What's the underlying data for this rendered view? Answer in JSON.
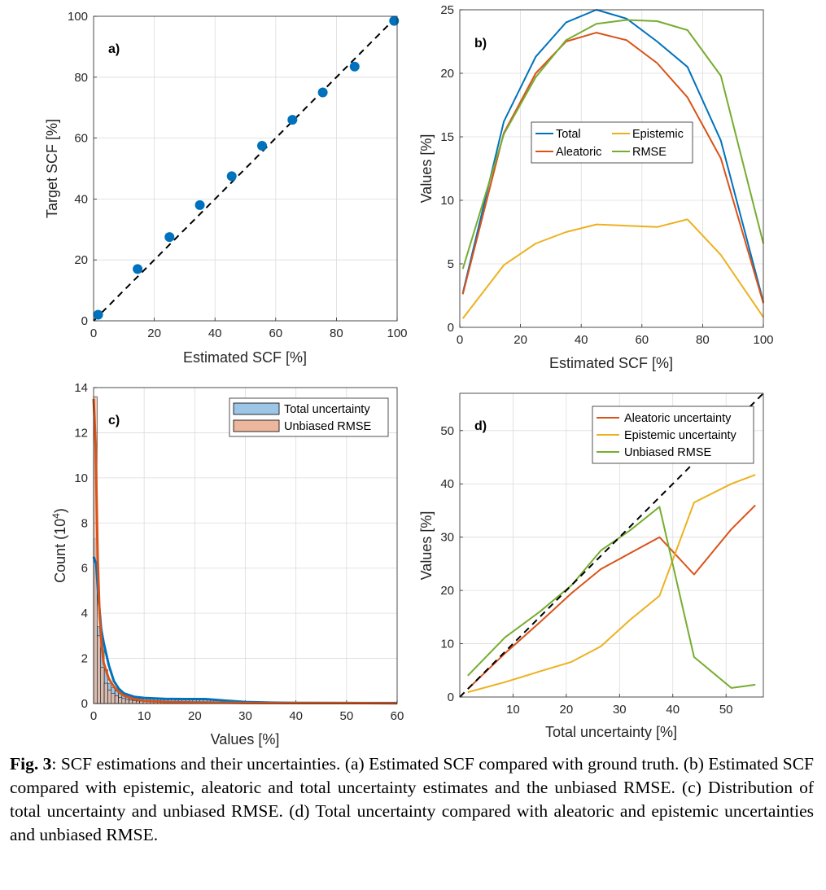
{
  "caption": {
    "label": "Fig. 3",
    "text": ": SCF estimations and their uncertainties. (a) Estimated SCF compared with ground truth. (b) Estimated SCF compared with epistemic, aleatoric and total uncertainty estimates and the unbiased RMSE. (c) Distribution of total uncertainty and unbiased RMSE. (d) Total uncertainty compared with aleatoric and epistemic uncertainties and unbiased RMSE."
  },
  "colors": {
    "blue": "#0072BD",
    "orange": "#D95319",
    "yellow": "#EDB120",
    "green": "#77AC30",
    "hist_blue": "#9CC5E6",
    "hist_orange": "#ECB79E"
  },
  "chart_data": [
    {
      "id": "a",
      "type": "scatter",
      "panel_label": "a)",
      "xlabel": "Estimated SCF [%]",
      "ylabel": "Target SCF [%]",
      "xlim": [
        0,
        100
      ],
      "ylim": [
        0,
        100
      ],
      "xticks": [
        0,
        20,
        40,
        60,
        80,
        100
      ],
      "yticks": [
        0,
        20,
        40,
        60,
        80,
        100
      ],
      "grid": true,
      "points": {
        "x": [
          1.5,
          14.5,
          25,
          35,
          45.5,
          55.5,
          65.5,
          75.5,
          86,
          99
        ],
        "y": [
          2,
          17,
          27.5,
          38,
          47.5,
          57.5,
          66,
          75,
          83.5,
          98.5
        ]
      },
      "reference_line": {
        "style": "dashed",
        "from": [
          0,
          0
        ],
        "to": [
          100,
          100
        ]
      }
    },
    {
      "id": "b",
      "type": "line",
      "panel_label": "b)",
      "xlabel": "Estimated SCF [%]",
      "ylabel": "Values [%]",
      "xlim": [
        0,
        100
      ],
      "ylim": [
        0,
        25
      ],
      "xticks": [
        0,
        20,
        40,
        60,
        80,
        100
      ],
      "yticks": [
        0,
        5,
        10,
        15,
        20,
        25
      ],
      "grid": true,
      "legend": "center-right",
      "x": [
        1,
        14.5,
        25,
        35,
        45,
        55,
        65,
        75,
        86,
        100
      ],
      "series": [
        {
          "name": "Total",
          "color": "blue",
          "values": [
            2.7,
            16.2,
            21.3,
            24.0,
            25.0,
            24.3,
            22.5,
            20.5,
            14.7,
            2.0
          ]
        },
        {
          "name": "Aleatoric",
          "color": "orange",
          "values": [
            2.6,
            15.3,
            20.0,
            22.5,
            23.2,
            22.6,
            20.8,
            18.1,
            13.3,
            1.9
          ]
        },
        {
          "name": "Epistemic",
          "color": "yellow",
          "values": [
            0.7,
            4.9,
            6.6,
            7.5,
            8.1,
            8.0,
            7.9,
            8.5,
            5.7,
            0.8
          ]
        },
        {
          "name": "RMSE",
          "color": "green",
          "values": [
            4.6,
            15.2,
            19.7,
            22.6,
            23.9,
            24.2,
            24.1,
            23.4,
            19.8,
            6.6
          ]
        }
      ]
    },
    {
      "id": "c",
      "type": "bar",
      "panel_label": "c)",
      "xlabel": "Values [%]",
      "ylabel_main": "Count (10",
      "ylabel_sup": "4",
      "ylabel_end": ")",
      "xlim": [
        0,
        60
      ],
      "ylim": [
        0,
        14
      ],
      "xticks": [
        0,
        10,
        20,
        30,
        40,
        50,
        60
      ],
      "yticks": [
        0,
        2,
        4,
        6,
        8,
        10,
        12,
        14
      ],
      "grid": true,
      "legend": "top-right",
      "bin_width": 0.7,
      "series": [
        {
          "name": "Total uncertainty",
          "color": "hist_blue",
          "values": [
            7.3,
            3.4,
            2.6,
            1.5,
            0.9,
            0.7,
            0.55,
            0.45,
            0.4,
            0.35,
            0.3,
            0.3,
            0.27,
            0.25,
            0.23,
            0.22,
            0.21,
            0.2,
            0.2,
            0.2,
            0.2,
            0.2,
            0.19,
            0.19,
            0.19,
            0.19,
            0.19,
            0.18,
            0.18,
            0.18,
            0.18,
            0.18,
            0.17,
            0.16,
            0.15
          ]
        },
        {
          "name": "Unbiased RMSE",
          "color": "hist_orange",
          "values": [
            13.6,
            3.0,
            1.6,
            0.9,
            0.6,
            0.45,
            0.35,
            0.28,
            0.22,
            0.18,
            0.15,
            0.13,
            0.11,
            0.1,
            0.09,
            0.08,
            0.08,
            0.07,
            0.07,
            0.06,
            0.06,
            0.06,
            0.05,
            0.05,
            0.05,
            0.05,
            0.04,
            0.04,
            0.04,
            0.04,
            0.04,
            0.03,
            0.03,
            0.03,
            0.03
          ]
        }
      ],
      "density_curves": [
        {
          "color": "blue",
          "x": [
            0,
            0.5,
            1,
            1.5,
            2,
            3,
            4,
            5,
            6,
            8,
            10,
            14,
            18,
            22,
            26,
            30,
            35,
            40,
            50,
            60
          ],
          "y": [
            6.5,
            6.2,
            4.6,
            3.3,
            2.7,
            1.7,
            1.0,
            0.65,
            0.45,
            0.3,
            0.25,
            0.21,
            0.2,
            0.2,
            0.13,
            0.07,
            0.04,
            0.03,
            0.02,
            0.02
          ]
        },
        {
          "color": "orange",
          "x": [
            0,
            0.4,
            0.8,
            1.2,
            1.6,
            2,
            3,
            4,
            5,
            6,
            8,
            10,
            15,
            20,
            30,
            40,
            50,
            60
          ],
          "y": [
            13.5,
            11.5,
            6.5,
            3.8,
            2.6,
            1.8,
            1.1,
            0.75,
            0.5,
            0.35,
            0.2,
            0.12,
            0.07,
            0.05,
            0.03,
            0.02,
            0.02,
            0.01
          ]
        }
      ]
    },
    {
      "id": "d",
      "type": "line",
      "panel_label": "d)",
      "xlabel": "Total uncertainty [%]",
      "ylabel": "Values [%]",
      "xlim": [
        0,
        57
      ],
      "ylim": [
        0,
        57
      ],
      "xticks": [
        10,
        20,
        30,
        40,
        50
      ],
      "yticks": [
        0,
        10,
        20,
        30,
        40,
        50
      ],
      "grid": true,
      "legend": "top-right",
      "x": [
        1.5,
        8.5,
        15,
        21,
        26.5,
        32,
        37.5,
        44,
        51,
        55.5
      ],
      "series": [
        {
          "name": "Aleatoric uncertainty",
          "color": "orange",
          "values": [
            1.5,
            8.2,
            14.0,
            19.5,
            24.0,
            27.0,
            30.0,
            23.0,
            31.5,
            36.0
          ]
        },
        {
          "name": "Epistemic uncertainty",
          "color": "yellow",
          "values": [
            0.9,
            2.8,
            4.8,
            6.6,
            9.5,
            14.5,
            19.0,
            36.5,
            40.0,
            41.7
          ]
        },
        {
          "name": "Unbiased RMSE",
          "color": "green",
          "values": [
            4.0,
            11.2,
            16.0,
            21.0,
            27.5,
            31.3,
            35.7,
            7.5,
            1.7,
            2.3
          ]
        }
      ],
      "reference_line": {
        "style": "dashed",
        "from": [
          0,
          0
        ],
        "to": [
          57,
          57
        ]
      }
    }
  ]
}
